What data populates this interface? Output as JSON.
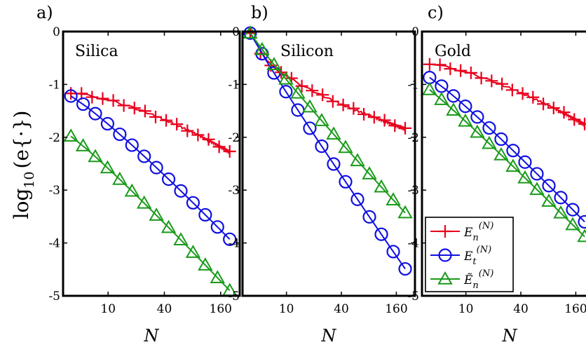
{
  "figure": {
    "ylabel_main": "log",
    "ylabel_sub": "10",
    "ylabel_tail": "(e{·})",
    "xlabel": "N"
  },
  "colors": {
    "En": "#e8001c",
    "Et": "#1010e0",
    "Entilde": "#1a9a1a"
  },
  "legend": {
    "placement": "bottom-right of panel b",
    "entries": [
      {
        "key": "En",
        "base": "E",
        "sub": "n",
        "sup": "(N)",
        "marker": "plus"
      },
      {
        "key": "Et",
        "base": "E",
        "sub": "t",
        "sup": "(N)",
        "marker": "circle"
      },
      {
        "key": "Entilde",
        "base": "Ẽ",
        "sub": "n",
        "sup": "(N)",
        "marker": "triangle"
      }
    ]
  },
  "chart_data": [
    {
      "type": "line",
      "letter": "a)",
      "title": "Silica",
      "xscale": "log",
      "xlim": [
        3.3,
        256
      ],
      "ylim": [
        -5,
        0
      ],
      "xticks": [
        10,
        40,
        160
      ],
      "yticks": [
        0,
        -1,
        -2,
        -3,
        -4,
        -5
      ],
      "ytick_labels": [
        "0",
        "-1",
        "-2",
        "-3",
        "-4",
        "-5"
      ],
      "grid": false,
      "series": [
        {
          "key": "En",
          "marker": "plus",
          "y_start": -1.17,
          "y_end": -2.27,
          "curve": 1.5,
          "jitter": 0.02
        },
        {
          "key": "Et",
          "marker": "circle",
          "y_start": -1.22,
          "y_end": -3.93,
          "curve": 1.12,
          "jitter": 0.0
        },
        {
          "key": "Entilde",
          "marker": "triangle",
          "y_start": -1.98,
          "y_end": -4.9,
          "curve": 1.08,
          "jitter": 0.0
        }
      ]
    },
    {
      "type": "line",
      "letter": "b)",
      "title": "Silicon",
      "xscale": "log",
      "xlim": [
        3.3,
        256
      ],
      "ylim": [
        -5,
        0
      ],
      "xticks": [
        10,
        40,
        160
      ],
      "yticks": [
        0,
        -1,
        -2,
        -3,
        -4,
        -5
      ],
      "ytick_labels": [
        "0",
        "-1",
        "-2",
        "-3",
        "-4",
        "-5"
      ],
      "grid": false,
      "series": [
        {
          "key": "En",
          "marker": "plus",
          "y_start": -0.03,
          "y_end": -1.83,
          "curve": 0.55,
          "jitter": 0.02
        },
        {
          "key": "Et",
          "marker": "circle",
          "y_start": -0.03,
          "y_end": -4.49,
          "curve": 0.95,
          "jitter": 0.0
        },
        {
          "key": "Entilde",
          "marker": "triangle",
          "y_start": -0.03,
          "y_end": -3.43,
          "curve": 0.93,
          "jitter": 0.0
        }
      ]
    },
    {
      "type": "line",
      "letter": "c)",
      "title": "Gold",
      "xscale": "log",
      "xlim": [
        3.3,
        256
      ],
      "ylim": [
        -5,
        0
      ],
      "xticks": [
        10,
        40,
        160
      ],
      "yticks": [
        0,
        -1,
        -2,
        -3,
        -4,
        -5
      ],
      "ytick_labels": [
        "0",
        "-1",
        "-2",
        "-3",
        "-4",
        "-5"
      ],
      "grid": false,
      "series": [
        {
          "key": "En",
          "marker": "plus",
          "y_start": -0.62,
          "y_end": -1.75,
          "curve": 1.4,
          "jitter": 0.02
        },
        {
          "key": "Et",
          "marker": "circle",
          "y_start": -0.87,
          "y_end": -3.6,
          "curve": 1.1,
          "jitter": 0.0
        },
        {
          "key": "Entilde",
          "marker": "triangle",
          "y_start": -1.1,
          "y_end": -3.88,
          "curve": 1.05,
          "jitter": 0.0
        }
      ]
    }
  ]
}
